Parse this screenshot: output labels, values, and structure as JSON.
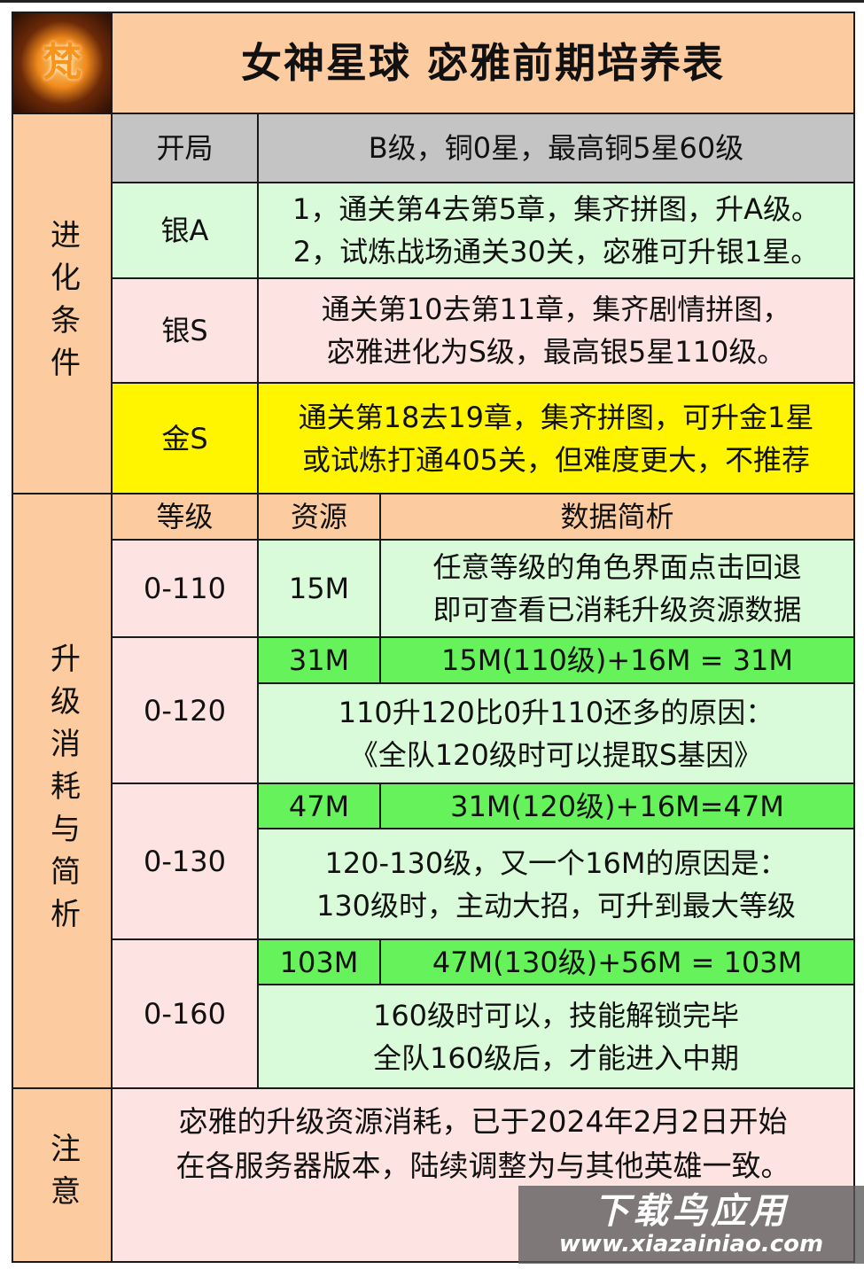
{
  "title": "女神星球  宓雅前期培养表",
  "logo_char": "梵",
  "evolution": {
    "section_label": "进化条件",
    "rows": [
      {
        "stage": "开局",
        "desc": "B级，铜0星，最高铜5星60级"
      },
      {
        "stage": "银A",
        "desc": "1，通关第4去第5章，集齐拼图，升A级。\n2，试炼战场通关30关，宓雅可升银1星。"
      },
      {
        "stage": "银S",
        "desc": "通关第10去第11章，集齐剧情拼图，\n宓雅进化为S级，最高银5星110级。"
      },
      {
        "stage": "金S",
        "desc": "通关第18去19章，集齐拼图，可升金1星\n或试炼打通405关，但难度更大，不推荐"
      }
    ]
  },
  "upgrade": {
    "section_label": "升级消耗与简析",
    "headers": [
      "等级",
      "资源",
      "数据简析"
    ],
    "rows": [
      {
        "level": "0-110",
        "resource": "15M",
        "analysis": "任意等级的角色界面点击回退\n即可查看已消耗升级资源数据"
      },
      {
        "level": "0-120",
        "resource": "31M",
        "formula": "15M(110级)+16M = 31M",
        "analysis": "110升120比0升110还多的原因：\n《全队120级时可以提取S基因》"
      },
      {
        "level": "0-130",
        "resource": "47M",
        "formula": "31M(120级)+16M=47M",
        "analysis": "120-130级，又一个16M的原因是：\n130级时，主动大招，可升到最大等级"
      },
      {
        "level": "0-160",
        "resource": "103M",
        "formula": "47M(130级)+56M = 103M",
        "analysis": "160级时可以，技能解锁完毕\n全队160级后，才能进入中期"
      }
    ]
  },
  "note": {
    "label": "注意",
    "text": "宓雅的升级资源消耗，已于2024年2月2日开始\n在各服务器版本，陆续调整为与其他英雄一致。"
  },
  "watermark": {
    "brand": "下载鸟应用",
    "url": "www.xiazainiao.com"
  }
}
